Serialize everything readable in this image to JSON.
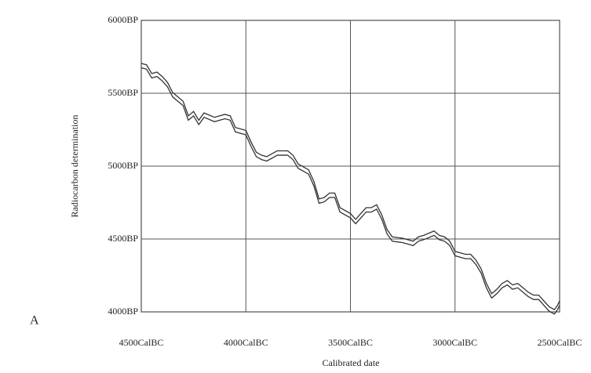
{
  "panel_label": "A",
  "chart_data": {
    "type": "line",
    "xlabel": "Calibrated date",
    "ylabel": "Radiocarbon determination",
    "xlim": [
      4500,
      2500
    ],
    "ylim": [
      4000,
      6000
    ],
    "xticks": [
      {
        "value": 4500,
        "label": "4500CalBC"
      },
      {
        "value": 4000,
        "label": "4000CalBC"
      },
      {
        "value": 3500,
        "label": "3500CalBC"
      },
      {
        "value": 3000,
        "label": "3000CalBC"
      },
      {
        "value": 2500,
        "label": "2500CalBC"
      }
    ],
    "yticks": [
      {
        "value": 4000,
        "label": "4000BP"
      },
      {
        "value": 4500,
        "label": "4500BP"
      },
      {
        "value": 5000,
        "label": "5000BP"
      },
      {
        "value": 5500,
        "label": "5500BP"
      },
      {
        "value": 6000,
        "label": "6000BP"
      }
    ],
    "grid": true,
    "x": [
      4500,
      4475,
      4450,
      4425,
      4400,
      4375,
      4350,
      4325,
      4300,
      4275,
      4250,
      4225,
      4200,
      4150,
      4100,
      4075,
      4050,
      4000,
      3975,
      3950,
      3925,
      3900,
      3875,
      3850,
      3800,
      3775,
      3750,
      3700,
      3675,
      3650,
      3625,
      3600,
      3575,
      3550,
      3500,
      3475,
      3450,
      3425,
      3400,
      3375,
      3350,
      3325,
      3300,
      3250,
      3200,
      3175,
      3150,
      3100,
      3075,
      3050,
      3025,
      3000,
      2975,
      2950,
      2925,
      2900,
      2875,
      2850,
      2825,
      2800,
      2775,
      2750,
      2725,
      2700,
      2675,
      2650,
      2625,
      2600,
      2575,
      2550,
      2525,
      2510,
      2500
    ],
    "series": [
      {
        "color": "#333333",
        "values": [
          5705,
          5695,
          5635,
          5645,
          5615,
          5575,
          5505,
          5475,
          5445,
          5345,
          5375,
          5315,
          5365,
          5335,
          5355,
          5345,
          5265,
          5245,
          5165,
          5095,
          5075,
          5065,
          5085,
          5105,
          5105,
          5075,
          5015,
          4975,
          4895,
          4775,
          4785,
          4815,
          4815,
          4715,
          4675,
          4635,
          4675,
          4715,
          4715,
          4735,
          4665,
          4565,
          4515,
          4505,
          4485,
          4515,
          4525,
          4555,
          4525,
          4515,
          4485,
          4415,
          4405,
          4395,
          4395,
          4355,
          4295,
          4195,
          4125,
          4155,
          4195,
          4215,
          4185,
          4195,
          4165,
          4135,
          4115,
          4115,
          4075,
          4035,
          4015,
          4045,
          4075
        ]
      },
      {
        "color": "#333333",
        "values": [
          5675,
          5665,
          5605,
          5615,
          5585,
          5545,
          5475,
          5445,
          5415,
          5315,
          5345,
          5285,
          5335,
          5305,
          5325,
          5315,
          5235,
          5215,
          5135,
          5065,
          5045,
          5035,
          5055,
          5075,
          5075,
          5045,
          4985,
          4945,
          4865,
          4745,
          4755,
          4785,
          4785,
          4685,
          4645,
          4605,
          4645,
          4685,
          4685,
          4705,
          4635,
          4535,
          4485,
          4475,
          4455,
          4485,
          4495,
          4525,
          4495,
          4485,
          4455,
          4385,
          4375,
          4365,
          4365,
          4325,
          4265,
          4165,
          4095,
          4125,
          4165,
          4185,
          4155,
          4165,
          4135,
          4105,
          4085,
          4085,
          4045,
          4005,
          3985,
          4015,
          4045
        ]
      }
    ]
  }
}
